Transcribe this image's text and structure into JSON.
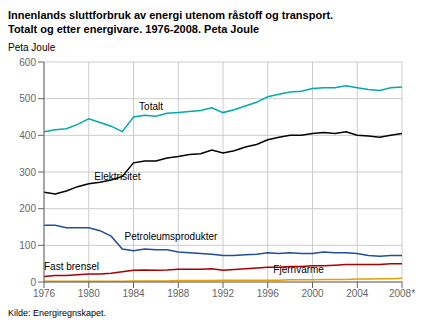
{
  "chart_data": {
    "type": "line",
    "title": "Innenlands sluttforbruk av energi utenom råstoff og transport.",
    "subtitle": "Totalt og etter energivare. 1976-2008. Peta Joule",
    "y_label": "Peta Joule",
    "source": "Kilde: Energiregnskapet.",
    "x": [
      1976,
      1977,
      1978,
      1979,
      1980,
      1981,
      1982,
      1983,
      1984,
      1985,
      1986,
      1987,
      1988,
      1989,
      1990,
      1991,
      1992,
      1993,
      1994,
      1995,
      1996,
      1997,
      1998,
      1999,
      2000,
      2001,
      2002,
      2003,
      2004,
      2005,
      2006,
      2007,
      2008
    ],
    "series": [
      {
        "name": "Totalt",
        "color": "#00AAAA",
        "values": [
          410,
          415,
          418,
          430,
          445,
          435,
          425,
          410,
          450,
          455,
          452,
          460,
          462,
          465,
          468,
          475,
          462,
          470,
          480,
          490,
          505,
          512,
          518,
          520,
          528,
          530,
          530,
          535,
          530,
          525,
          522,
          530,
          532
        ]
      },
      {
        "name": "Elektrisitet",
        "color": "#000000",
        "values": [
          245,
          240,
          248,
          260,
          268,
          272,
          278,
          288,
          325,
          330,
          330,
          338,
          342,
          348,
          350,
          360,
          352,
          358,
          368,
          375,
          388,
          395,
          400,
          400,
          405,
          408,
          405,
          410,
          400,
          398,
          395,
          400,
          405
        ]
      },
      {
        "name": "Petroleumsprodukter",
        "color": "#1F4E9A",
        "values": [
          155,
          155,
          148,
          148,
          148,
          140,
          125,
          90,
          85,
          90,
          88,
          88,
          82,
          80,
          78,
          76,
          72,
          72,
          74,
          76,
          80,
          78,
          80,
          78,
          78,
          82,
          80,
          80,
          78,
          72,
          70,
          72,
          72
        ]
      },
      {
        "name": "Fast brensel",
        "color": "#AA0000",
        "values": [
          15,
          18,
          18,
          20,
          22,
          22,
          24,
          28,
          32,
          33,
          32,
          33,
          35,
          35,
          35,
          36,
          32,
          34,
          36,
          38,
          40,
          40,
          42,
          42,
          44,
          44,
          46,
          48,
          48,
          48,
          48,
          50,
          50
        ]
      },
      {
        "name": "Fjernvarme",
        "color": "#E8A000",
        "values": [
          2,
          2,
          2,
          2,
          2,
          2,
          2,
          2,
          3,
          3,
          3,
          3,
          4,
          4,
          4,
          4,
          5,
          5,
          5,
          5,
          5,
          5,
          6,
          6,
          6,
          7,
          7,
          7,
          8,
          8,
          9,
          9,
          10
        ]
      }
    ],
    "annotations": [
      {
        "text": "Totalt",
        "x": 1984.5,
        "y": 463
      },
      {
        "text": "Elektrisitet",
        "x": 1980.5,
        "y": 272
      },
      {
        "text": "Petroleumsprodukter",
        "x": 1983.2,
        "y": 108
      },
      {
        "text": "Fast brensel",
        "x": 1976.0,
        "y": 28
      },
      {
        "text": "Fjernvarme",
        "x": 1996.5,
        "y": 20
      }
    ],
    "xlim": [
      1976,
      2008
    ],
    "ylim": [
      0,
      600
    ],
    "xticks": [
      1976,
      1980,
      1984,
      1988,
      1992,
      1996,
      2000,
      2004,
      {
        "value": 2008,
        "label": "2008*"
      }
    ],
    "yticks": [
      0,
      100,
      200,
      300,
      400,
      500,
      600
    ],
    "grid": true
  }
}
